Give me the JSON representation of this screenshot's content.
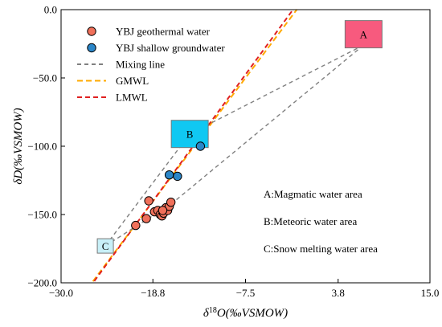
{
  "chart_data": {
    "type": "scatter",
    "xlabel_prefix": "δ",
    "xlabel_sup": "18",
    "xlabel_rest": "O(‰VSMOW)",
    "ylabel": "δD(‰VSMOW)",
    "xlim": [
      -30.0,
      15.0
    ],
    "ylim": [
      -200.0,
      0.0
    ],
    "x_ticks": [
      -30.0,
      -18.8,
      -7.5,
      3.8,
      15.0
    ],
    "x_tick_labels": [
      "−30.0",
      "−18.8",
      "−7.5",
      "3.8",
      "15.0"
    ],
    "y_ticks": [
      -200.0,
      -150.0,
      -100.0,
      -50.0,
      0.0
    ],
    "y_tick_labels": [
      "−200.0",
      "−150.0",
      "−100.0",
      "−50.0",
      "0.0"
    ],
    "grid": false,
    "legend_position": "top-left",
    "series": [
      {
        "name": "YBJ geothermal water",
        "marker": "circle",
        "color": "#f0705a",
        "points": [
          {
            "x": -20.9,
            "y": -158
          },
          {
            "x": -19.6,
            "y": -153
          },
          {
            "x": -19.3,
            "y": -140
          },
          {
            "x": -18.6,
            "y": -148
          },
          {
            "x": -18.2,
            "y": -147
          },
          {
            "x": -17.9,
            "y": -150
          },
          {
            "x": -17.7,
            "y": -151
          },
          {
            "x": -17.5,
            "y": -149
          },
          {
            "x": -17.2,
            "y": -145
          },
          {
            "x": -17.0,
            "y": -147
          },
          {
            "x": -16.8,
            "y": -144
          },
          {
            "x": -16.6,
            "y": -141
          },
          {
            "x": -17.6,
            "y": -147
          }
        ]
      },
      {
        "name": "YBJ shallow groundwater",
        "marker": "circle",
        "color": "#2b86c8",
        "points": [
          {
            "x": -16.8,
            "y": -121
          },
          {
            "x": -15.8,
            "y": -122
          },
          {
            "x": -13.0,
            "y": -100
          }
        ]
      }
    ],
    "lines": [
      {
        "name": "Mixing line",
        "style": "dashed",
        "color": "#808080"
      },
      {
        "name": "GMWL",
        "style": "dashed",
        "color": "#ffaa00",
        "slope": 8,
        "intercept": 10
      },
      {
        "name": "LMWL",
        "style": "dashed",
        "color": "#e02020",
        "slope": 8.2,
        "intercept": 14
      }
    ],
    "mixing_lines": [
      {
        "from": [
          6.9,
          -26
        ],
        "to": [
          -14.3,
          -91
        ]
      },
      {
        "from": [
          6.9,
          -26
        ],
        "to": [
          -16.5,
          -142
        ]
      },
      {
        "from": [
          -24.6,
          -173
        ],
        "to": [
          -14.3,
          -91
        ]
      },
      {
        "from": [
          -24.6,
          -173
        ],
        "to": [
          -16.5,
          -142
        ]
      }
    ],
    "regions": [
      {
        "label": "A",
        "x": 6.9,
        "y": -18,
        "color": "#f75a7e"
      },
      {
        "label": "B",
        "x": -14.3,
        "y": -91,
        "color": "#10c8f2"
      },
      {
        "label": "C",
        "x": -24.6,
        "y": -173,
        "color": "#c8f0f8"
      }
    ],
    "annotations": [
      "A:Magmatic water area",
      "B:Meteoric water area",
      "C:Snow melting water area"
    ]
  }
}
